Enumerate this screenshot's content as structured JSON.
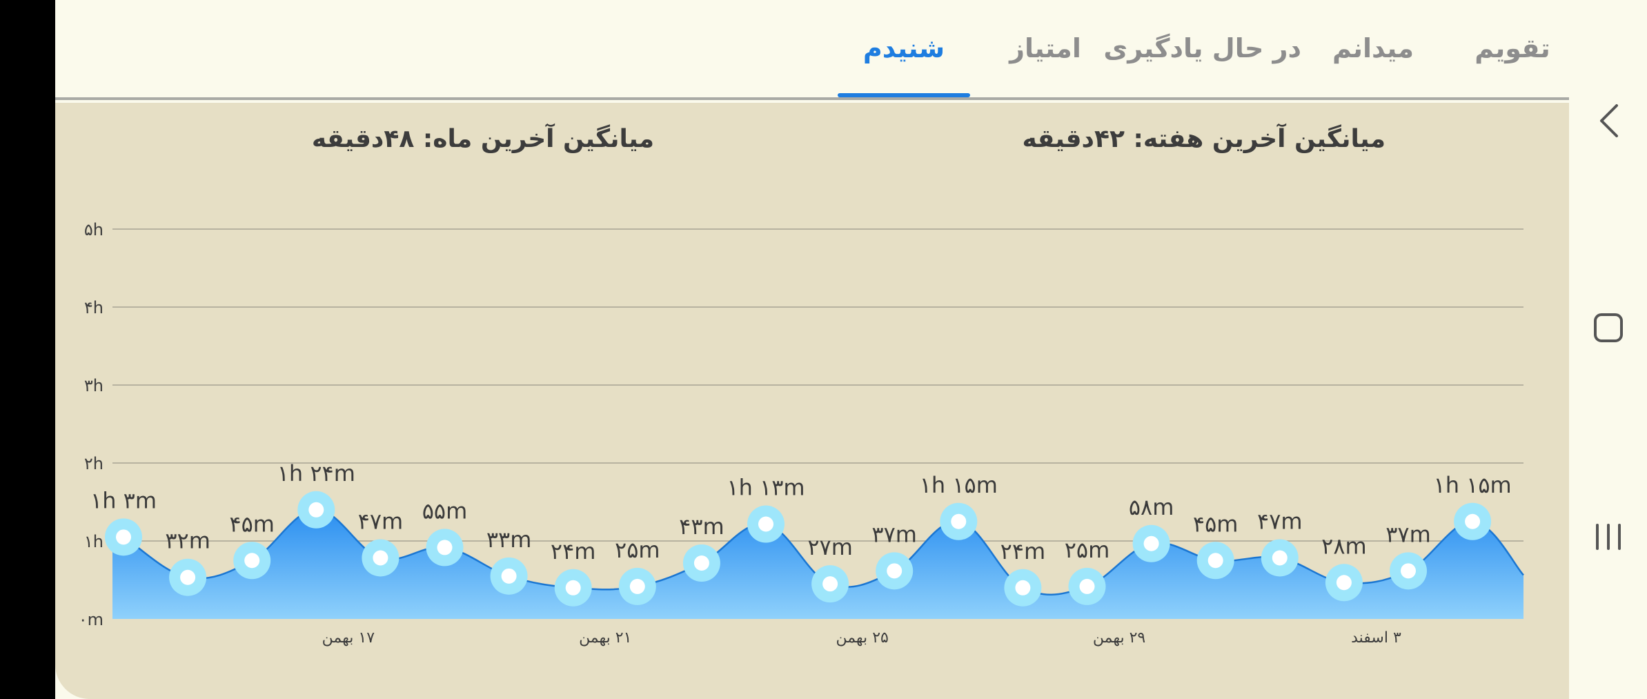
{
  "tabs": [
    {
      "label": "تقویم",
      "active": false
    },
    {
      "label": "میدانم",
      "active": false
    },
    {
      "label": "در حال یادگیری",
      "active": false
    },
    {
      "label": "امتیاز",
      "active": false
    },
    {
      "label": "شنیدم",
      "active": true
    }
  ],
  "averages": {
    "week": "میانگین آخرین هفته: ۴۲دقیقه",
    "month": "میانگین آخرین ماه: ۴۸دقیقه"
  },
  "colors": {
    "accent": "#1e7de0",
    "area_top": "#2a8ef0",
    "area_bottom": "#8fd1fb",
    "point_ring": "#9ee6fb",
    "panel_bg": "#e6dfc5",
    "page_bg": "#fbfaec"
  },
  "chart_data": {
    "type": "area",
    "y_ticks": [
      "۰m",
      "۱h",
      "۲h",
      "۳h",
      "۴h",
      "۵h"
    ],
    "ylim": [
      0,
      300
    ],
    "x_labels": [
      {
        "index": 3.5,
        "label": "۱۷ بهمن"
      },
      {
        "index": 7.5,
        "label": "۲۱ بهمن"
      },
      {
        "index": 11.5,
        "label": "۲۵ بهمن"
      },
      {
        "index": 15.5,
        "label": "۲۹ بهمن"
      },
      {
        "index": 19.5,
        "label": "۳ اسفند"
      }
    ],
    "points": [
      {
        "value": 63,
        "label": "۱h ۳m"
      },
      {
        "value": 32,
        "label": "۳۲m"
      },
      {
        "value": 45,
        "label": "۴۵m"
      },
      {
        "value": 84,
        "label": "۱h ۲۴m"
      },
      {
        "value": 47,
        "label": "۴۷m"
      },
      {
        "value": 55,
        "label": "۵۵m"
      },
      {
        "value": 33,
        "label": "۳۳m"
      },
      {
        "value": 24,
        "label": "۲۴m"
      },
      {
        "value": 25,
        "label": "۲۵m"
      },
      {
        "value": 43,
        "label": "۴۳m"
      },
      {
        "value": 73,
        "label": "۱h ۱۳m"
      },
      {
        "value": 27,
        "label": "۲۷m"
      },
      {
        "value": 37,
        "label": "۳۷m"
      },
      {
        "value": 75,
        "label": "۱h ۱۵m"
      },
      {
        "value": 24,
        "label": "۲۴m"
      },
      {
        "value": 25,
        "label": "۲۵m"
      },
      {
        "value": 58,
        "label": "۵۸m"
      },
      {
        "value": 45,
        "label": "۴۵m"
      },
      {
        "value": 47,
        "label": "۴۷m"
      },
      {
        "value": 28,
        "label": "۲۸m"
      },
      {
        "value": 37,
        "label": "۳۷m"
      },
      {
        "value": 75,
        "label": "۱h ۱۵m"
      }
    ],
    "grid": true
  },
  "nav": {
    "back_icon": "chevron-left-icon",
    "home_icon": "square-icon",
    "recents_icon": "recents-icon"
  }
}
